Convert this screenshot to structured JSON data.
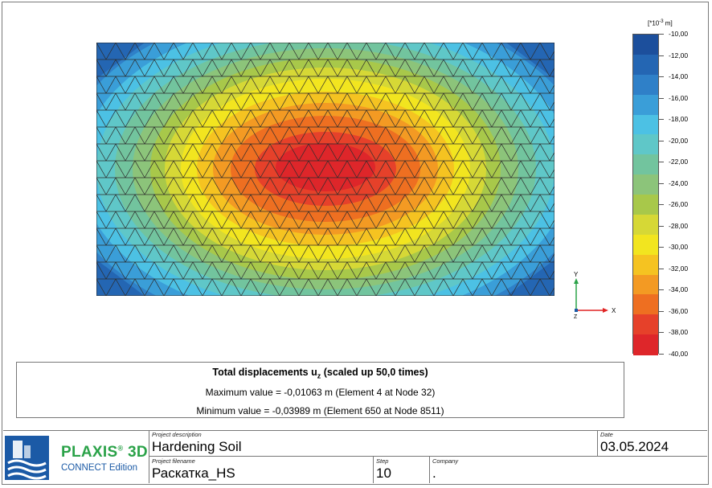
{
  "result": {
    "title_main": "Total displacements u",
    "title_sub": "z",
    "title_rest": " (scaled up 50,0 times)",
    "max_line": "Maximum value = -0,01063 m (Element 4 at Node 32)",
    "min_line": "Minimum value = -0,03989 m (Element 650 at Node 8511)"
  },
  "legend": {
    "unit_prefix": "[*10",
    "unit_exp": "-3",
    "unit_suffix": " m]",
    "labels": [
      "-10,00",
      "-12,00",
      "-14,00",
      "-16,00",
      "-18,00",
      "-20,00",
      "-22,00",
      "-24,00",
      "-26,00",
      "-28,00",
      "-30,00",
      "-32,00",
      "-34,00",
      "-36,00",
      "-38,00",
      "-40,00"
    ],
    "colors": [
      "#1c4f9c",
      "#2466b3",
      "#2f80c8",
      "#3a9ed8",
      "#4cc1e4",
      "#5fc7c8",
      "#72c49e",
      "#8cc47a",
      "#a8c84a",
      "#d6d836",
      "#f2e51f",
      "#f5c321",
      "#f39a23",
      "#ee6f21",
      "#e6412a",
      "#de262a"
    ]
  },
  "axes": {
    "x_label": "X",
    "y_label": "Y",
    "z_label": "Z"
  },
  "title_block": {
    "project_description_caption": "Project description",
    "project_description": "Hardening Soil",
    "date_caption": "Date",
    "date": "03.05.2024",
    "project_filename_caption": "Project filename",
    "project_filename": "Раскатка_HS",
    "step_caption": "Step",
    "step": "10",
    "company_caption": "Company",
    "company": ".",
    "brand_name": "PLAXIS",
    "brand_reg": "®",
    "brand_3d": " 3D",
    "brand_edition": "CONNECT Edition"
  }
}
